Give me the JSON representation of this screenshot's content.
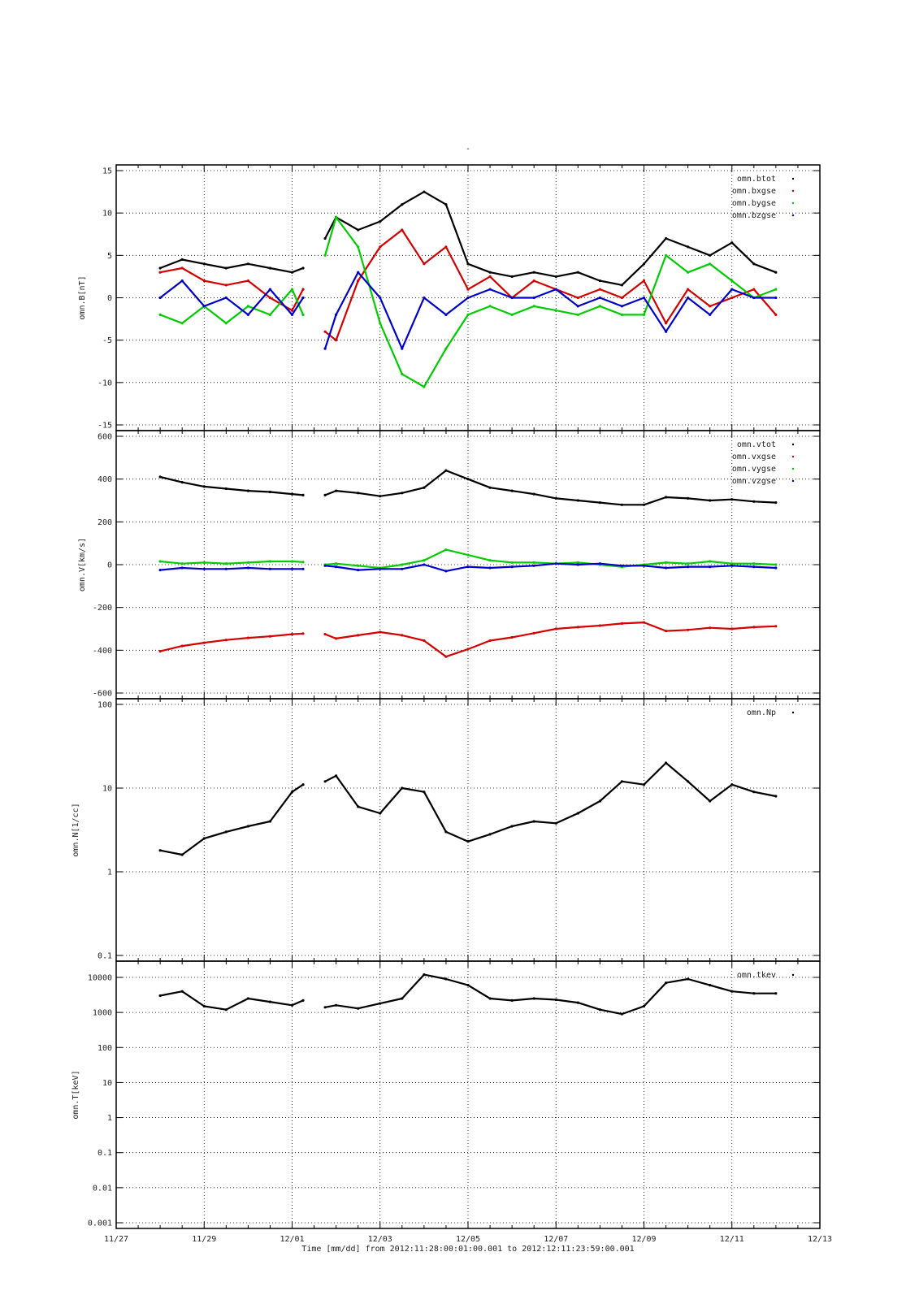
{
  "figure": {
    "title": "-",
    "x_axis_title": "Time [mm/dd]  from 2012:11:28:00:01:00.001  to  2012:12:11:23:59:00.001",
    "x_tick_labels": [
      "11/27",
      "11/29",
      "12/01",
      "12/03",
      "12/05",
      "12/07",
      "12/09",
      "12/11",
      "12/13"
    ]
  },
  "chart_data": [
    {
      "type": "scatter",
      "ylabel": "omn.B[nT]",
      "ylim": [
        -15,
        15
      ],
      "y_ticks": [
        15,
        10,
        5,
        0,
        -5,
        -10,
        -15
      ],
      "xlim": [
        "2012-11-27",
        "2012-12-13"
      ],
      "x_tick_labels": [
        "11/27",
        "11/29",
        "12/01",
        "12/03",
        "12/05",
        "12/07",
        "12/09",
        "12/11",
        "12/13"
      ],
      "grid": true,
      "legend": "top-right",
      "x": [
        "2012-11-28",
        "2012-11-28 12:00",
        "2012-11-29",
        "2012-11-29 12:00",
        "2012-11-30",
        "2012-11-30 12:00",
        "2012-12-01",
        "2012-12-01 06:00",
        "2012-12-01 18:00",
        "2012-12-02",
        "2012-12-02 12:00",
        "2012-12-03",
        "2012-12-03 12:00",
        "2012-12-04",
        "2012-12-04 12:00",
        "2012-12-05",
        "2012-12-05 12:00",
        "2012-12-06",
        "2012-12-06 12:00",
        "2012-12-07",
        "2012-12-07 12:00",
        "2012-12-08",
        "2012-12-08 12:00",
        "2012-12-09",
        "2012-12-09 12:00",
        "2012-12-10",
        "2012-12-10 12:00",
        "2012-12-11",
        "2012-12-11 12:00",
        "2012-12-11 23:59"
      ],
      "series": [
        {
          "name": "omn.btot",
          "color": "#000000",
          "values": [
            3.5,
            4.5,
            4,
            3.5,
            4,
            3.5,
            3,
            3.5,
            7,
            9.5,
            8,
            9,
            11,
            12.5,
            11,
            4,
            3,
            2.5,
            3,
            2.5,
            3,
            2,
            1.5,
            4,
            7,
            6,
            5,
            6.5,
            4,
            3
          ]
        },
        {
          "name": "omn.bxgse",
          "color": "#d40000",
          "values": [
            3,
            3.5,
            2,
            1.5,
            2,
            0,
            -1.5,
            1,
            -4,
            -5,
            2,
            6,
            8,
            4,
            6,
            1,
            2.5,
            0,
            2,
            1,
            0,
            1,
            0,
            2,
            -3,
            1,
            -1,
            0,
            1,
            -2
          ]
        },
        {
          "name": "omn.bygse",
          "color": "#00cc00",
          "values": [
            -2,
            -3,
            -1,
            -3,
            -1,
            -2,
            1,
            -2,
            5,
            9.5,
            6,
            -3,
            -9,
            -10.5,
            -6,
            -2,
            -1,
            -2,
            -1,
            -1.5,
            -2,
            -1,
            -2,
            -2,
            5,
            3,
            4,
            2,
            0,
            1
          ]
        },
        {
          "name": "omn.bzgse",
          "color": "#0000cc",
          "values": [
            0,
            2,
            -1,
            0,
            -2,
            1,
            -2,
            0,
            -6,
            -2,
            3,
            0,
            -6,
            0,
            -2,
            0,
            1,
            0,
            0,
            1,
            -1,
            0,
            -1,
            0,
            -4,
            0,
            -2,
            1,
            0,
            0
          ]
        }
      ]
    },
    {
      "type": "scatter",
      "ylabel": "omn.V[km/s]",
      "ylim": [
        -600,
        600
      ],
      "y_ticks": [
        600,
        400,
        200,
        0,
        -200,
        -400,
        -600
      ],
      "xlim": [
        "2012-11-27",
        "2012-12-13"
      ],
      "x_tick_labels": [
        "11/27",
        "11/29",
        "12/01",
        "12/03",
        "12/05",
        "12/07",
        "12/09",
        "12/11",
        "12/13"
      ],
      "grid": true,
      "legend": "top-right",
      "x": [
        "2012-11-28",
        "2012-11-28 12:00",
        "2012-11-29",
        "2012-11-29 12:00",
        "2012-11-30",
        "2012-11-30 12:00",
        "2012-12-01",
        "2012-12-01 06:00",
        "2012-12-01 18:00",
        "2012-12-02",
        "2012-12-02 12:00",
        "2012-12-03",
        "2012-12-03 12:00",
        "2012-12-04",
        "2012-12-04 12:00",
        "2012-12-05",
        "2012-12-05 12:00",
        "2012-12-06",
        "2012-12-06 12:00",
        "2012-12-07",
        "2012-12-07 12:00",
        "2012-12-08",
        "2012-12-08 12:00",
        "2012-12-09",
        "2012-12-09 12:00",
        "2012-12-10",
        "2012-12-10 12:00",
        "2012-12-11",
        "2012-12-11 12:00",
        "2012-12-11 23:59"
      ],
      "series": [
        {
          "name": "omn.vtot",
          "color": "#000000",
          "values": [
            410,
            385,
            365,
            355,
            345,
            340,
            330,
            325,
            325,
            345,
            335,
            320,
            335,
            360,
            440,
            400,
            360,
            345,
            330,
            310,
            300,
            290,
            280,
            280,
            315,
            310,
            300,
            305,
            295,
            290
          ]
        },
        {
          "name": "omn.vxgse",
          "color": "#d40000",
          "values": [
            -405,
            -380,
            -365,
            -352,
            -342,
            -335,
            -325,
            -322,
            -325,
            -345,
            -330,
            -315,
            -330,
            -355,
            -430,
            -395,
            -355,
            -340,
            -320,
            -300,
            -292,
            -285,
            -275,
            -270,
            -310,
            -305,
            -295,
            -300,
            -292,
            -288
          ]
        },
        {
          "name": "omn.vygse",
          "color": "#00cc00",
          "values": [
            15,
            5,
            10,
            5,
            10,
            15,
            15,
            12,
            0,
            5,
            -5,
            -15,
            0,
            20,
            70,
            45,
            20,
            10,
            10,
            5,
            10,
            0,
            -10,
            0,
            10,
            5,
            15,
            5,
            5,
            0
          ]
        },
        {
          "name": "omn.vzgse",
          "color": "#0000cc",
          "values": [
            -25,
            -15,
            -20,
            -20,
            -15,
            -20,
            -20,
            -20,
            -5,
            -10,
            -25,
            -20,
            -20,
            0,
            -30,
            -10,
            -15,
            -10,
            -5,
            5,
            0,
            5,
            -5,
            -5,
            -15,
            -10,
            -10,
            -5,
            -10,
            -15
          ]
        }
      ]
    },
    {
      "type": "scatter",
      "ylabel": "omn.N[1/cc]",
      "y_scale": "log",
      "ylim": [
        0.1,
        100
      ],
      "y_ticks": [
        100,
        10,
        1,
        0.1
      ],
      "xlim": [
        "2012-11-27",
        "2012-12-13"
      ],
      "x_tick_labels": [
        "11/27",
        "11/29",
        "12/01",
        "12/03",
        "12/05",
        "12/07",
        "12/09",
        "12/11",
        "12/13"
      ],
      "grid": true,
      "legend": "top-right",
      "x": [
        "2012-11-28",
        "2012-11-28 12:00",
        "2012-11-29",
        "2012-11-29 12:00",
        "2012-11-30",
        "2012-11-30 12:00",
        "2012-12-01",
        "2012-12-01 06:00",
        "2012-12-01 18:00",
        "2012-12-02",
        "2012-12-02 12:00",
        "2012-12-03",
        "2012-12-03 12:00",
        "2012-12-04",
        "2012-12-04 12:00",
        "2012-12-05",
        "2012-12-05 12:00",
        "2012-12-06",
        "2012-12-06 12:00",
        "2012-12-07",
        "2012-12-07 12:00",
        "2012-12-08",
        "2012-12-08 12:00",
        "2012-12-09",
        "2012-12-09 12:00",
        "2012-12-10",
        "2012-12-10 12:00",
        "2012-12-11",
        "2012-12-11 12:00",
        "2012-12-11 23:59"
      ],
      "series": [
        {
          "name": "omn.Np",
          "color": "#000000",
          "values": [
            1.8,
            1.6,
            2.5,
            3,
            3.5,
            4,
            9,
            11,
            12,
            14,
            6,
            5,
            10,
            9,
            3,
            2.3,
            2.8,
            3.5,
            4,
            3.8,
            5,
            7,
            12,
            11,
            20,
            12,
            7,
            11,
            9,
            8
          ]
        }
      ]
    },
    {
      "type": "scatter",
      "ylabel": "omn.T[keV]",
      "y_scale": "log",
      "ylim": [
        0.001,
        20000
      ],
      "y_ticks": [
        10000,
        1000,
        100,
        10,
        1,
        0.1,
        0.01,
        0.001
      ],
      "xlim": [
        "2012-11-27",
        "2012-12-13"
      ],
      "x_tick_labels": [
        "11/27",
        "11/29",
        "12/01",
        "12/03",
        "12/05",
        "12/07",
        "12/09",
        "12/11",
        "12/13"
      ],
      "grid": true,
      "legend": "top-right",
      "x": [
        "2012-11-28",
        "2012-11-28 12:00",
        "2012-11-29",
        "2012-11-29 12:00",
        "2012-11-30",
        "2012-11-30 12:00",
        "2012-12-01",
        "2012-12-01 06:00",
        "2012-12-01 18:00",
        "2012-12-02",
        "2012-12-02 12:00",
        "2012-12-03",
        "2012-12-03 12:00",
        "2012-12-04",
        "2012-12-04 12:00",
        "2012-12-05",
        "2012-12-05 12:00",
        "2012-12-06",
        "2012-12-06 12:00",
        "2012-12-07",
        "2012-12-07 12:00",
        "2012-12-08",
        "2012-12-08 12:00",
        "2012-12-09",
        "2012-12-09 12:00",
        "2012-12-10",
        "2012-12-10 12:00",
        "2012-12-11",
        "2012-12-11 12:00",
        "2012-12-11 23:59"
      ],
      "series": [
        {
          "name": "omn.tkev",
          "color": "#000000",
          "values": [
            3000,
            4000,
            1500,
            1200,
            2500,
            2000,
            1600,
            2200,
            1400,
            1600,
            1300,
            1800,
            2500,
            12000,
            9000,
            6000,
            2500,
            2200,
            2500,
            2300,
            1900,
            1200,
            900,
            1500,
            7000,
            9000,
            6000,
            4000,
            3500,
            3500
          ]
        }
      ]
    }
  ]
}
